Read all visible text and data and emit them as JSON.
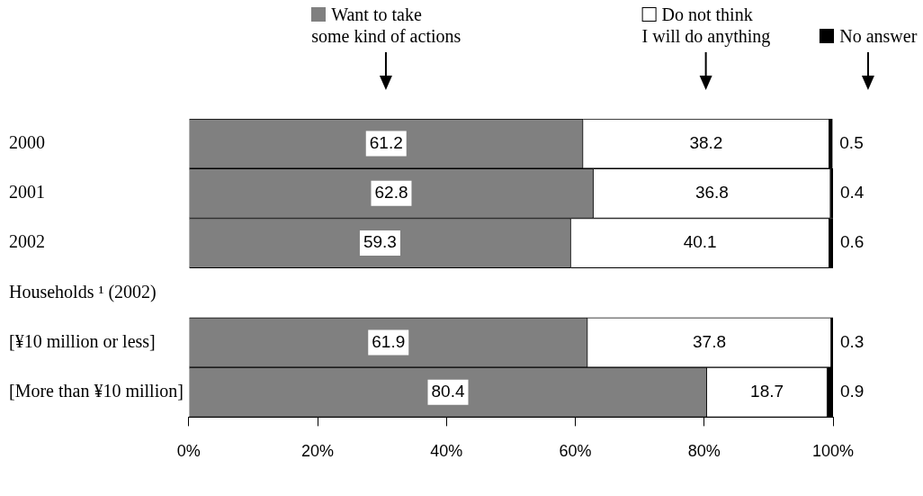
{
  "chart_data": {
    "type": "bar",
    "orientation": "horizontal",
    "stacked": true,
    "categories": [
      "2000",
      "2001",
      "2002",
      "Households ¹ (2002)",
      "[¥10 million or less]",
      "[More than ¥10 million]"
    ],
    "series": [
      {
        "name": "Want to take\nsome kind of actions",
        "color": "#808080",
        "values": [
          61.2,
          62.8,
          59.3,
          null,
          61.9,
          80.4
        ]
      },
      {
        "name": "Do not think\nI will do anything",
        "color": "#ffffff",
        "values": [
          38.2,
          36.8,
          40.1,
          null,
          37.8,
          18.7
        ]
      },
      {
        "name": "No answer",
        "color": "#000000",
        "values": [
          0.5,
          0.4,
          0.6,
          null,
          0.3,
          0.9
        ]
      }
    ],
    "xlim": [
      0,
      100
    ],
    "xticks": [
      {
        "value": 0,
        "label": "0%"
      },
      {
        "value": 20,
        "label": "20%"
      },
      {
        "value": 40,
        "label": "40%"
      },
      {
        "value": 60,
        "label": "60%"
      },
      {
        "value": 80,
        "label": "80%"
      },
      {
        "value": 100,
        "label": "100%"
      }
    ],
    "data_labels": true,
    "legend": "top",
    "grid": false
  }
}
